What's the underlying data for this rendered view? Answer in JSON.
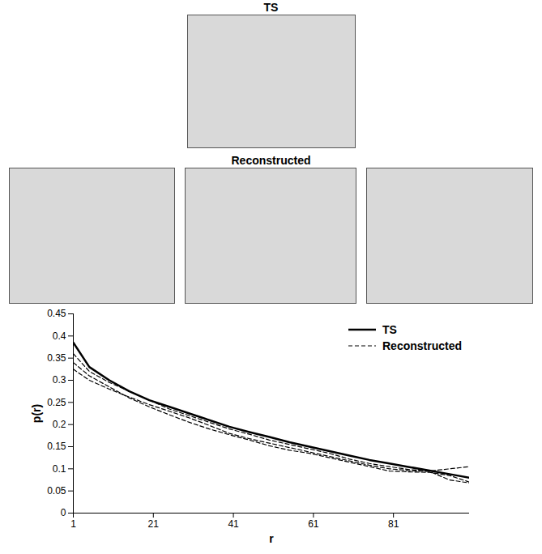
{
  "chart_data": {
    "type": "line",
    "panels": {
      "top_title": "TS",
      "middle_title": "Reconstructed"
    },
    "x_label": "r",
    "y_label": "p(r)",
    "x": [
      1,
      5,
      10,
      15,
      20,
      25,
      30,
      35,
      40,
      45,
      50,
      55,
      60,
      65,
      70,
      75,
      80,
      85,
      90,
      95,
      100
    ],
    "xlim": [
      1,
      100
    ],
    "xticks": [
      1,
      21,
      41,
      61,
      81
    ],
    "ylim": [
      0,
      0.45
    ],
    "yticks": [
      0,
      0.05,
      0.1,
      0.15,
      0.2,
      0.25,
      0.3,
      0.35,
      0.4,
      0.45
    ],
    "grid": false,
    "legend": "top-right",
    "series": [
      {
        "name": "TS",
        "color": "#000000",
        "line_style": "solid",
        "values": [
          0.385,
          0.33,
          0.3,
          0.275,
          0.255,
          0.24,
          0.225,
          0.21,
          0.195,
          0.183,
          0.172,
          0.16,
          0.15,
          0.14,
          0.13,
          0.12,
          0.112,
          0.104,
          0.096,
          0.088,
          0.08
        ]
      },
      {
        "name": "Reconstructed",
        "color": "#000000",
        "line_style": "dashed",
        "values": [
          0.36,
          0.32,
          0.295,
          0.275,
          0.255,
          0.235,
          0.22,
          0.205,
          0.19,
          0.178,
          0.165,
          0.155,
          0.145,
          0.135,
          0.122,
          0.112,
          0.105,
          0.098,
          0.095,
          0.1,
          0.105
        ]
      },
      {
        "name": "Reconstructed",
        "color": "#000000",
        "line_style": "dashed",
        "values": [
          0.34,
          0.31,
          0.285,
          0.26,
          0.24,
          0.222,
          0.205,
          0.19,
          0.177,
          0.165,
          0.152,
          0.142,
          0.135,
          0.125,
          0.115,
          0.105,
          0.095,
          0.093,
          0.092,
          0.085,
          0.07
        ]
      },
      {
        "name": "Reconstructed",
        "color": "#000000",
        "line_style": "dashed",
        "values": [
          0.325,
          0.3,
          0.28,
          0.262,
          0.245,
          0.23,
          0.215,
          0.198,
          0.18,
          0.168,
          0.158,
          0.148,
          0.138,
          0.128,
          0.118,
          0.108,
          0.1,
          0.096,
          0.094,
          0.075,
          0.068
        ]
      }
    ]
  }
}
